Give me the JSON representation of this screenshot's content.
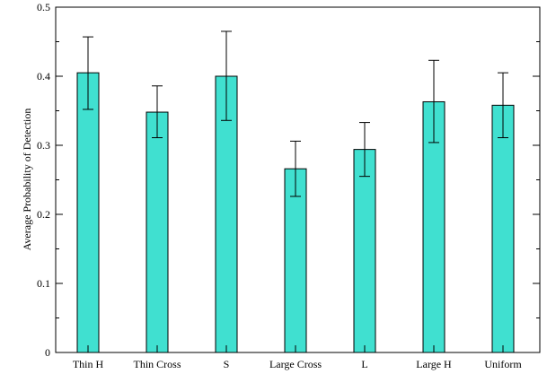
{
  "chart_data": {
    "type": "bar",
    "title": "",
    "xlabel": "",
    "ylabel": "Average Probability of Detection",
    "ylim": [
      0,
      0.5
    ],
    "yticks": [
      "0",
      "0.1",
      "0.2",
      "0.3",
      "0.4",
      "0.5"
    ],
    "categories": [
      "Thin H",
      "Thin Cross",
      "S",
      "Large Cross",
      "L",
      "Large H",
      "Uniform"
    ],
    "values": [
      0.405,
      0.348,
      0.4,
      0.266,
      0.294,
      0.363,
      0.358
    ],
    "error_low": [
      0.352,
      0.311,
      0.336,
      0.226,
      0.255,
      0.304,
      0.311
    ],
    "error_high": [
      0.457,
      0.386,
      0.465,
      0.306,
      0.333,
      0.423,
      0.405
    ],
    "bar_color": "#40e0d0",
    "grid": false,
    "legend": "none"
  }
}
